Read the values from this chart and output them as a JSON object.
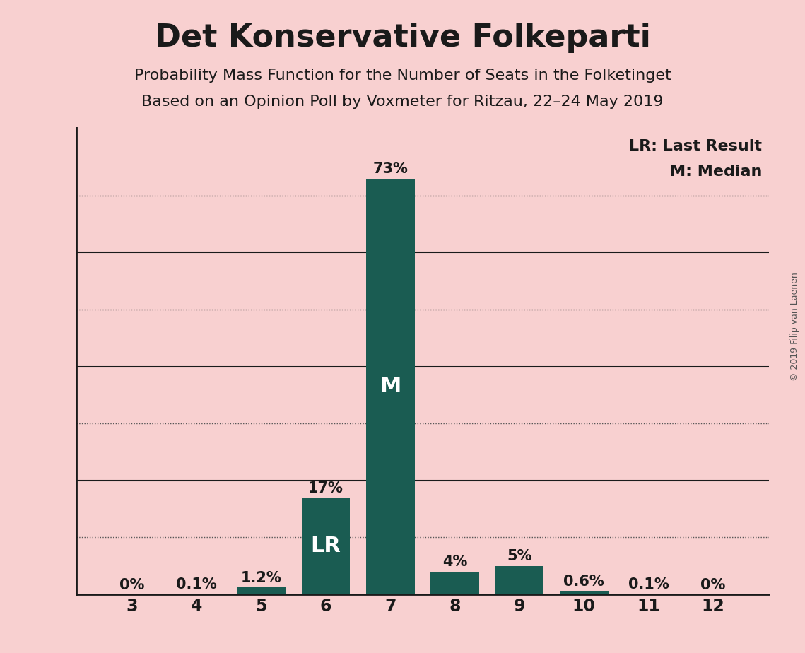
{
  "title": "Det Konservative Folkeparti",
  "subtitle1": "Probability Mass Function for the Number of Seats in the Folketinget",
  "subtitle2": "Based on an Opinion Poll by Voxmeter for Ritzau, 22–24 May 2019",
  "copyright": "© 2019 Filip van Laenen",
  "categories": [
    3,
    4,
    5,
    6,
    7,
    8,
    9,
    10,
    11,
    12
  ],
  "values": [
    0.0,
    0.1,
    1.2,
    17.0,
    73.0,
    4.0,
    5.0,
    0.6,
    0.1,
    0.0
  ],
  "labels": [
    "0%",
    "0.1%",
    "1.2%",
    "17%",
    "73%",
    "4%",
    "5%",
    "0.6%",
    "0.1%",
    "0%"
  ],
  "bar_color": "#1a5c52",
  "background_color": "#f8d0d0",
  "label_color_above": "#1a1a1a",
  "median_seat": 7,
  "lr_seat": 6,
  "median_label": "M",
  "lr_label": "LR",
  "legend_lr": "LR: Last Result",
  "legend_m": "M: Median",
  "solid_gridlines": [
    20,
    40,
    60
  ],
  "dotted_gridlines": [
    10,
    30,
    50,
    70
  ],
  "ytick_labels_pos": [
    20,
    40,
    60
  ],
  "ylim": [
    0,
    82
  ],
  "title_fontsize": 32,
  "subtitle_fontsize": 16,
  "label_fontsize": 15,
  "axis_fontsize": 17,
  "inside_label_fontsize": 22,
  "legend_fontsize": 16,
  "copyright_fontsize": 9,
  "grid_color": "#555555",
  "spine_color": "#1a1a1a"
}
